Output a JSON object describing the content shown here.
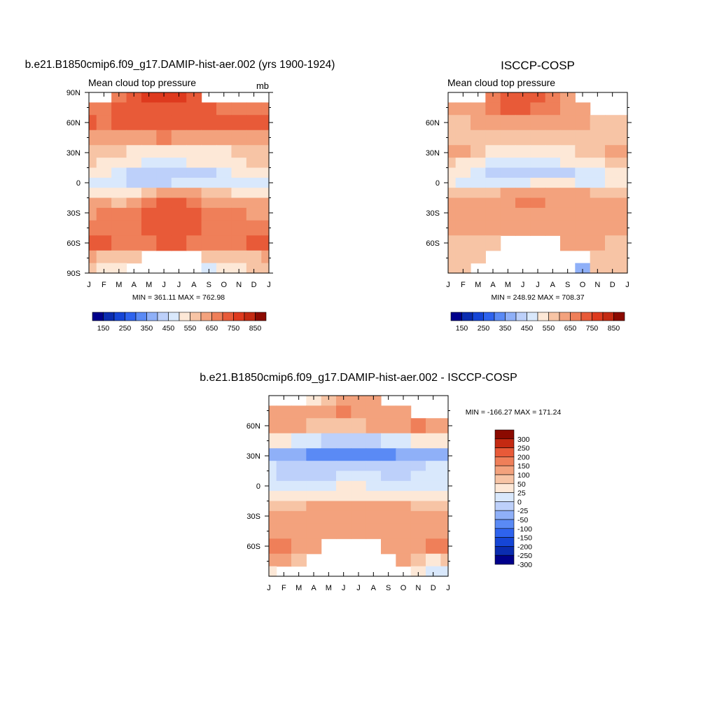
{
  "palette": {
    "abs": [
      "#00008b",
      "#0a2cb0",
      "#1545d6",
      "#2e63ee",
      "#5a8af5",
      "#8fb0f8",
      "#bdd0fa",
      "#d9e8fc",
      "#fde8d7",
      "#f7c4a5",
      "#f3a27d",
      "#ef7f59",
      "#e85a38",
      "#de3a1e",
      "#c42a12",
      "#8b0a00"
    ],
    "diff": [
      "#00008b",
      "#0a2cb0",
      "#1545d6",
      "#2e63ee",
      "#5a8af5",
      "#8fb0f8",
      "#bdd0fa",
      "#d9e8fc",
      "#fde8d7",
      "#f7c4a5",
      "#f3a27d",
      "#ef7f59",
      "#e85a38",
      "#c42a12",
      "#8b0a00"
    ]
  },
  "chart_data": [
    {
      "type": "heatmap",
      "title": "b.e21.B1850cmip6.f09_g17.DAMIP-hist-aer.002 (yrs 1900-1924)",
      "left_label": "Mean cloud top pressure",
      "units": "mb",
      "x_ticks": [
        "J",
        "F",
        "M",
        "A",
        "M",
        "J",
        "J",
        "A",
        "S",
        "O",
        "N",
        "D",
        "J"
      ],
      "y_ticks": [
        "90N",
        "60N",
        "30N",
        "0",
        "30S",
        "60S",
        "90S"
      ],
      "min_max": "MIN = 361.11 MAX = 762.98",
      "colorbar_labels": [
        "150",
        "250",
        "350",
        "450",
        "550",
        "650",
        "750",
        "850"
      ],
      "months": [
        1,
        2,
        3,
        4,
        5,
        6,
        7,
        8,
        9,
        10,
        11,
        12,
        13
      ],
      "lat_bands": [
        85,
        75,
        60,
        45,
        30,
        20,
        10,
        0,
        -10,
        -20,
        -30,
        -45,
        -60,
        -75,
        -85
      ],
      "values": [
        [
          null,
          null,
          650,
          700,
          760,
          760,
          760,
          720,
          null,
          null,
          null,
          null,
          null
        ],
        [
          650,
          650,
          700,
          720,
          740,
          740,
          720,
          720,
          700,
          650,
          650,
          650,
          650
        ],
        [
          700,
          680,
          700,
          700,
          720,
          720,
          700,
          700,
          700,
          700,
          700,
          720,
          700
        ],
        [
          620,
          620,
          620,
          620,
          620,
          650,
          620,
          620,
          620,
          620,
          620,
          620,
          620
        ],
        [
          560,
          560,
          560,
          540,
          540,
          540,
          520,
          520,
          520,
          540,
          560,
          560,
          560
        ],
        [
          560,
          540,
          520,
          500,
          480,
          480,
          480,
          500,
          520,
          540,
          540,
          560,
          560
        ],
        [
          520,
          500,
          460,
          420,
          400,
          400,
          400,
          420,
          440,
          460,
          500,
          520,
          520
        ],
        [
          480,
          460,
          450,
          440,
          440,
          440,
          450,
          470,
          480,
          480,
          480,
          480,
          480
        ],
        [
          540,
          540,
          520,
          540,
          580,
          600,
          600,
          600,
          580,
          560,
          540,
          540,
          540
        ],
        [
          600,
          600,
          580,
          600,
          650,
          700,
          700,
          680,
          620,
          600,
          600,
          600,
          600
        ],
        [
          640,
          650,
          650,
          660,
          700,
          720,
          720,
          700,
          660,
          650,
          650,
          640,
          640
        ],
        [
          680,
          680,
          680,
          680,
          700,
          700,
          700,
          700,
          680,
          680,
          680,
          680,
          680
        ],
        [
          720,
          700,
          680,
          680,
          680,
          700,
          700,
          680,
          680,
          680,
          680,
          720,
          720
        ],
        [
          600,
          560,
          550,
          550,
          null,
          null,
          null,
          null,
          550,
          550,
          550,
          560,
          600
        ],
        [
          560,
          520,
          500,
          null,
          null,
          null,
          null,
          null,
          450,
          500,
          540,
          560,
          560
        ]
      ]
    },
    {
      "type": "heatmap",
      "title": "ISCCP-COSP",
      "left_label": "Mean cloud top pressure",
      "units": "",
      "x_ticks": [
        "J",
        "F",
        "M",
        "A",
        "M",
        "J",
        "J",
        "A",
        "S",
        "O",
        "N",
        "D",
        "J"
      ],
      "y_ticks": [
        "60N",
        "30N",
        "0",
        "30S",
        "60S"
      ],
      "min_max": "MIN = 248.92 MAX = 708.37",
      "colorbar_labels": [
        "150",
        "250",
        "350",
        "450",
        "550",
        "650",
        "750",
        "850"
      ],
      "months": [
        1,
        2,
        3,
        4,
        5,
        6,
        7,
        8,
        9,
        10,
        11,
        12,
        13
      ],
      "lat_bands": [
        85,
        75,
        60,
        45,
        30,
        20,
        10,
        0,
        -10,
        -20,
        -30,
        -45,
        -60,
        -75,
        -85
      ],
      "values": [
        [
          null,
          null,
          null,
          650,
          720,
          720,
          700,
          650,
          600,
          null,
          null,
          null,
          null
        ],
        [
          600,
          600,
          620,
          650,
          700,
          700,
          680,
          650,
          620,
          600,
          null,
          null,
          null
        ],
        [
          580,
          580,
          600,
          620,
          640,
          640,
          620,
          620,
          620,
          600,
          580,
          560,
          560
        ],
        [
          560,
          560,
          560,
          560,
          560,
          560,
          560,
          560,
          560,
          560,
          560,
          560,
          560
        ],
        [
          620,
          600,
          560,
          540,
          520,
          520,
          520,
          520,
          540,
          560,
          580,
          620,
          620
        ],
        [
          560,
          540,
          500,
          480,
          460,
          460,
          460,
          480,
          500,
          520,
          540,
          560,
          560
        ],
        [
          520,
          500,
          460,
          420,
          400,
          400,
          400,
          420,
          440,
          460,
          480,
          500,
          520
        ],
        [
          500,
          480,
          460,
          460,
          470,
          480,
          500,
          520,
          500,
          480,
          480,
          500,
          500
        ],
        [
          560,
          560,
          560,
          580,
          600,
          620,
          640,
          640,
          620,
          600,
          580,
          560,
          560
        ],
        [
          600,
          600,
          600,
          620,
          640,
          660,
          660,
          640,
          620,
          600,
          600,
          600,
          600
        ],
        [
          620,
          620,
          620,
          620,
          640,
          640,
          640,
          640,
          620,
          620,
          620,
          620,
          620
        ],
        [
          600,
          600,
          600,
          600,
          600,
          600,
          600,
          600,
          600,
          600,
          600,
          600,
          600
        ],
        [
          580,
          580,
          580,
          580,
          null,
          null,
          null,
          null,
          600,
          600,
          600,
          580,
          580
        ],
        [
          560,
          560,
          550,
          null,
          null,
          null,
          null,
          null,
          null,
          null,
          560,
          560,
          560
        ],
        [
          560,
          560,
          null,
          null,
          null,
          null,
          null,
          null,
          null,
          350,
          560,
          560,
          560
        ]
      ]
    },
    {
      "type": "heatmap",
      "title": "b.e21.B1850cmip6.f09_g17.DAMIP-hist-aer.002 - ISCCP-COSP",
      "x_ticks": [
        "J",
        "F",
        "M",
        "A",
        "M",
        "J",
        "J",
        "A",
        "S",
        "O",
        "N",
        "D",
        "J"
      ],
      "y_ticks": [
        "60N",
        "30N",
        "0",
        "30S",
        "60S"
      ],
      "min_max": "MIN = -166.27 MAX = 171.24",
      "colorbar_labels": [
        "300",
        "250",
        "200",
        "150",
        "100",
        "50",
        "25",
        "0",
        "-25",
        "-50",
        "-100",
        "-150",
        "-200",
        "-250",
        "-300"
      ],
      "months": [
        1,
        2,
        3,
        4,
        5,
        6,
        7,
        8,
        9,
        10,
        11,
        12,
        13
      ],
      "lat_bands": [
        85,
        75,
        60,
        45,
        30,
        20,
        10,
        0,
        -10,
        -20,
        -30,
        -45,
        -60,
        -75,
        -85
      ],
      "values": [
        [
          null,
          null,
          null,
          20,
          40,
          60,
          60,
          70,
          null,
          null,
          null,
          null,
          null
        ],
        [
          60,
          60,
          80,
          60,
          60,
          100,
          80,
          60,
          60,
          80,
          null,
          null,
          null
        ],
        [
          80,
          80,
          60,
          40,
          40,
          40,
          40,
          60,
          60,
          80,
          100,
          80,
          80
        ],
        [
          20,
          0,
          -10,
          -20,
          -30,
          -40,
          -40,
          -30,
          -20,
          -10,
          0,
          20,
          20
        ],
        [
          -60,
          -80,
          -100,
          -120,
          -140,
          -150,
          -150,
          -140,
          -120,
          -100,
          -80,
          -60,
          -60
        ],
        [
          -20,
          -30,
          -40,
          -50,
          -50,
          -50,
          -40,
          -30,
          -30,
          -30,
          -30,
          -20,
          -20
        ],
        [
          -20,
          -30,
          -40,
          -30,
          -30,
          -20,
          -20,
          -20,
          -30,
          -30,
          -20,
          -20,
          -20
        ],
        [
          -20,
          -20,
          -20,
          -10,
          -10,
          0,
          0,
          -20,
          -20,
          -20,
          -20,
          -20,
          -20
        ],
        [
          20,
          10,
          0,
          10,
          20,
          20,
          20,
          10,
          0,
          10,
          20,
          20,
          20
        ],
        [
          40,
          40,
          40,
          50,
          60,
          60,
          60,
          60,
          60,
          50,
          40,
          40,
          40
        ],
        [
          60,
          60,
          60,
          60,
          70,
          70,
          70,
          60,
          60,
          60,
          60,
          60,
          60
        ],
        [
          80,
          80,
          80,
          80,
          80,
          80,
          80,
          80,
          80,
          80,
          80,
          80,
          80
        ],
        [
          100,
          100,
          80,
          80,
          null,
          null,
          null,
          null,
          80,
          80,
          80,
          100,
          100
        ],
        [
          60,
          60,
          40,
          null,
          null,
          null,
          null,
          null,
          null,
          60,
          40,
          20,
          40
        ],
        [
          20,
          null,
          null,
          null,
          null,
          null,
          null,
          null,
          null,
          null,
          20,
          -20,
          -20
        ]
      ]
    }
  ]
}
